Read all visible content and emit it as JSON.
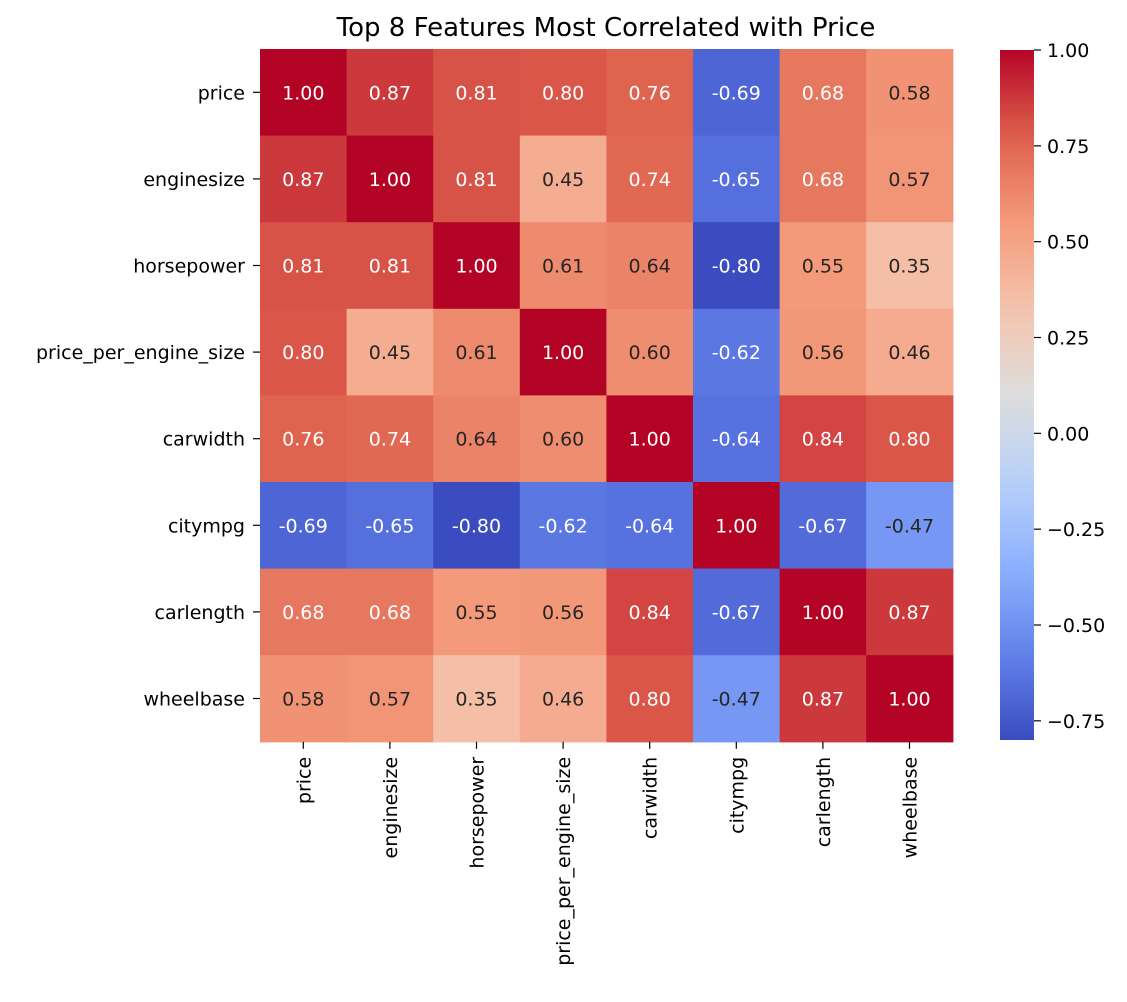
{
  "chart_data": {
    "type": "heatmap",
    "title": "Top 8 Features Most Correlated with Price",
    "xlabel": "",
    "ylabel": "",
    "row_labels": [
      "price",
      "enginesize",
      "horsepower",
      "price_per_engine_size",
      "carwidth",
      "citympg",
      "carlength",
      "wheelbase"
    ],
    "col_labels": [
      "price",
      "enginesize",
      "horsepower",
      "price_per_engine_size",
      "carwidth",
      "citympg",
      "carlength",
      "wheelbase"
    ],
    "values": [
      [
        1.0,
        0.87,
        0.81,
        0.8,
        0.76,
        -0.69,
        0.68,
        0.58
      ],
      [
        0.87,
        1.0,
        0.81,
        0.45,
        0.74,
        -0.65,
        0.68,
        0.57
      ],
      [
        0.81,
        0.81,
        1.0,
        0.61,
        0.64,
        -0.8,
        0.55,
        0.35
      ],
      [
        0.8,
        0.45,
        0.61,
        1.0,
        0.6,
        -0.62,
        0.56,
        0.46
      ],
      [
        0.76,
        0.74,
        0.64,
        0.6,
        1.0,
        -0.64,
        0.84,
        0.8
      ],
      [
        -0.69,
        -0.65,
        -0.8,
        -0.62,
        -0.64,
        1.0,
        -0.67,
        -0.47
      ],
      [
        0.68,
        0.68,
        0.55,
        0.56,
        0.84,
        -0.67,
        1.0,
        0.87
      ],
      [
        0.58,
        0.57,
        0.35,
        0.46,
        0.8,
        -0.47,
        0.87,
        1.0
      ]
    ],
    "value_format": "0.00",
    "colormap": "coolwarm",
    "colors": {
      "low": "#3b4cc0",
      "mid": "#dddddd",
      "high": "#b40426"
    },
    "vmin": -0.8,
    "vmax": 1.0,
    "colorbar": {
      "ticks": [
        1.0,
        0.75,
        0.5,
        0.25,
        0.0,
        -0.25,
        -0.5,
        -0.75
      ],
      "tick_labels": [
        "1.00",
        "0.75",
        "0.50",
        "0.25",
        "0.00",
        "−0.25",
        "−0.50",
        "−0.75"
      ],
      "placement": "right"
    },
    "grid": false
  }
}
